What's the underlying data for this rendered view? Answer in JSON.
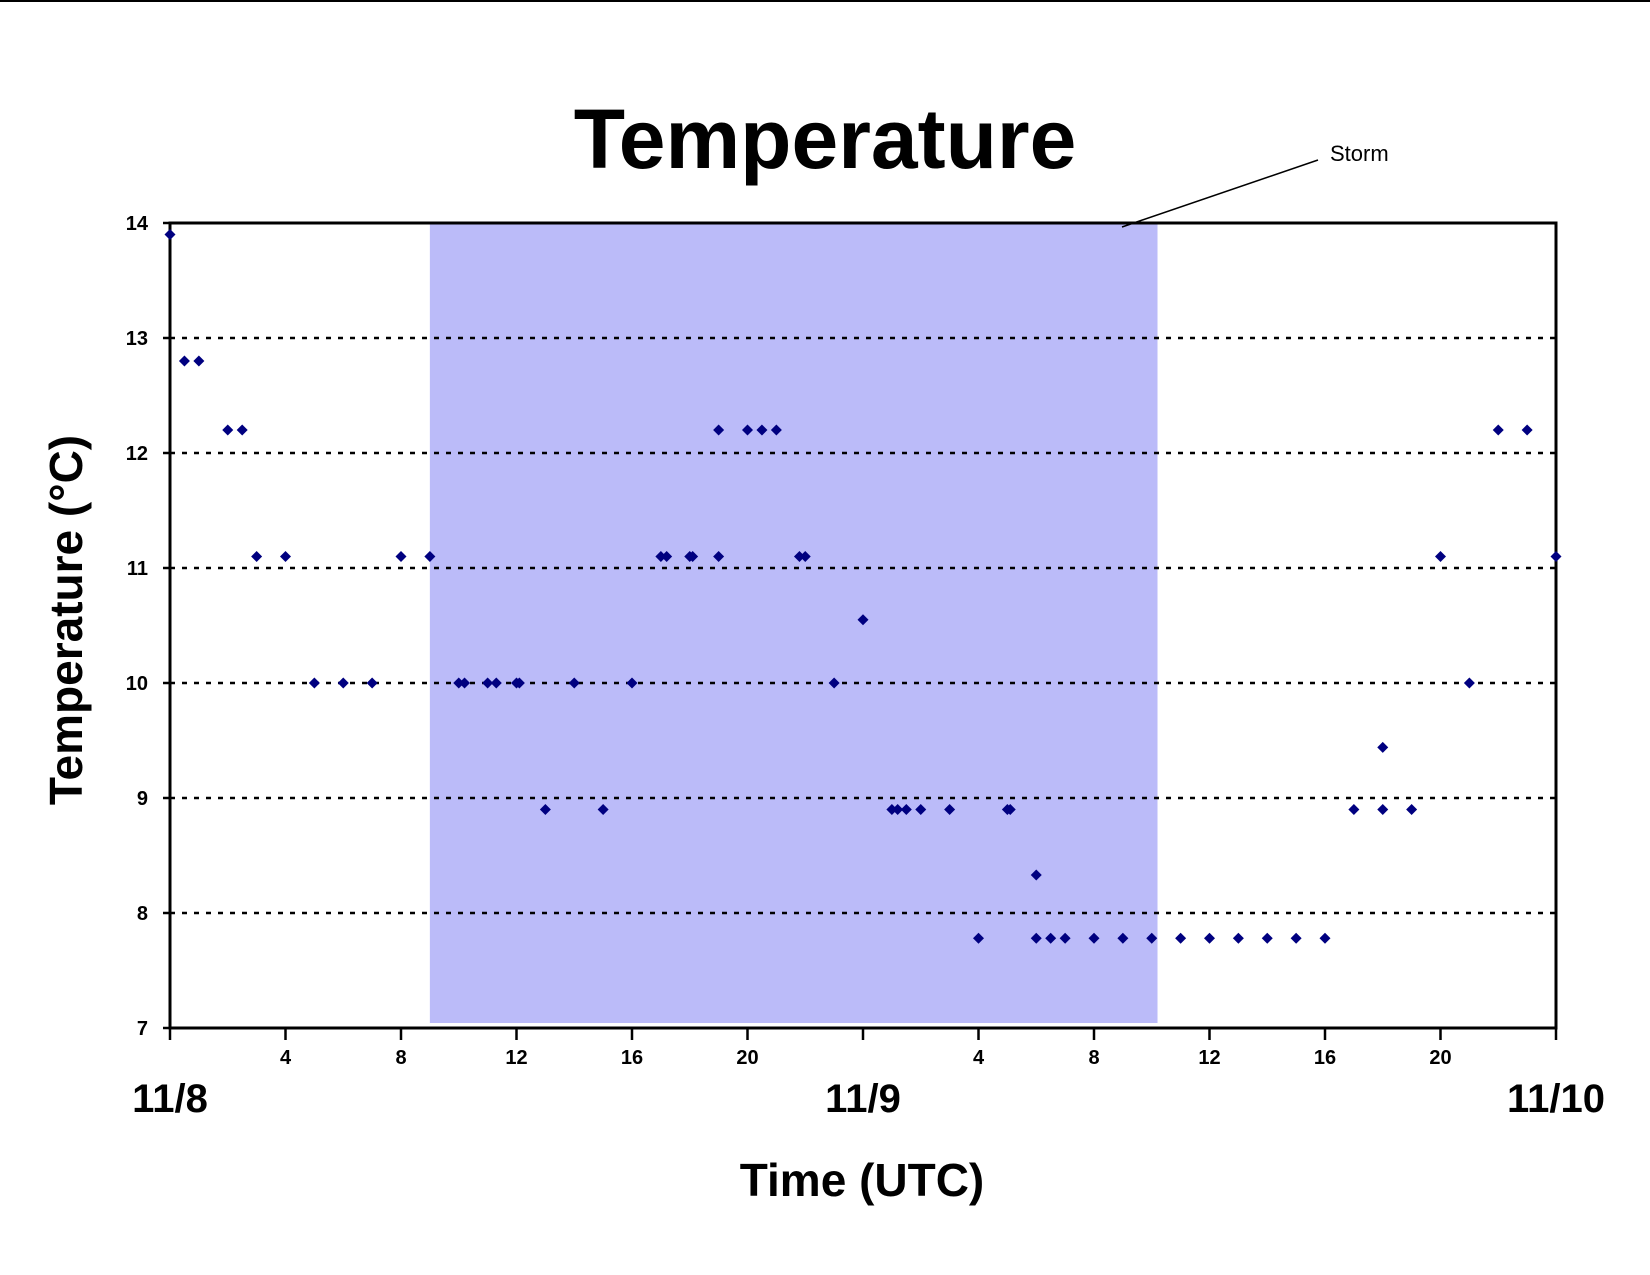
{
  "chart_data": {
    "type": "scatter",
    "title": "Temperature",
    "xlabel": "Time (UTC)",
    "ylabel": "Temperature (°C)",
    "ylim": [
      7,
      14
    ],
    "xlim": [
      0,
      48
    ],
    "y_ticks": [
      "7",
      "8",
      "9",
      "10",
      "11",
      "12",
      "13",
      "14"
    ],
    "x_hour_ticks": [
      {
        "x": 4,
        "label": "4"
      },
      {
        "x": 8,
        "label": "8"
      },
      {
        "x": 12,
        "label": "12"
      },
      {
        "x": 16,
        "label": "16"
      },
      {
        "x": 20,
        "label": "20"
      },
      {
        "x": 28,
        "label": "4"
      },
      {
        "x": 32,
        "label": "8"
      },
      {
        "x": 36,
        "label": "12"
      },
      {
        "x": 40,
        "label": "16"
      },
      {
        "x": 44,
        "label": "20"
      }
    ],
    "x_date_labels": [
      {
        "x": 0,
        "label": "11/8"
      },
      {
        "x": 24,
        "label": "11/9"
      },
      {
        "x": 48,
        "label": "11/10"
      }
    ],
    "grid": "horizontal dotted",
    "marker_color": "#000080",
    "shaded_region": {
      "x_start": 9,
      "x_end": 34.2,
      "color": "#bbbbf9",
      "label": "Storm"
    },
    "annotation": {
      "text": "Storm"
    },
    "series": [
      {
        "x": [
          0,
          0.5,
          1,
          2,
          2.5,
          3,
          4,
          5,
          6,
          7,
          8,
          9,
          10,
          10.2,
          11,
          11.3,
          12,
          12.1,
          13,
          14,
          15,
          16,
          17,
          17.2,
          18,
          18.1,
          19,
          19,
          20,
          20.5,
          21,
          21.8,
          22,
          23,
          24,
          25,
          25.2,
          25.5,
          26,
          27,
          29,
          29.1,
          30,
          30,
          30.5,
          31,
          32,
          33,
          34,
          35,
          36,
          37,
          38,
          39,
          40,
          41,
          42,
          42,
          43,
          44,
          45,
          46,
          47,
          48
        ],
        "y": [
          13.9,
          12.8,
          12.8,
          12.2,
          12.2,
          11.1,
          11.1,
          10,
          10,
          10,
          11.1,
          11.1,
          10,
          10,
          10,
          10,
          10,
          10,
          8.9,
          10,
          8.9,
          10,
          11.1,
          11.1,
          11.1,
          11.1,
          12.2,
          11.1,
          12.2,
          12.2,
          12.2,
          11.1,
          11.1,
          10,
          10.55,
          8.9,
          8.9,
          8.9,
          8.9,
          8.9,
          8.9,
          8.9,
          8.33,
          7.78,
          7.78,
          7.78,
          7.78,
          7.78,
          7.78,
          7.78,
          7.78,
          7.78,
          7.78,
          7.78,
          7.78,
          8.9,
          9.44,
          8.9,
          8.9,
          11.1,
          10,
          12.2,
          12.2,
          11.1
        ]
      }
    ],
    "extra_points": [
      {
        "x": 28,
        "y": 7.78
      }
    ]
  }
}
